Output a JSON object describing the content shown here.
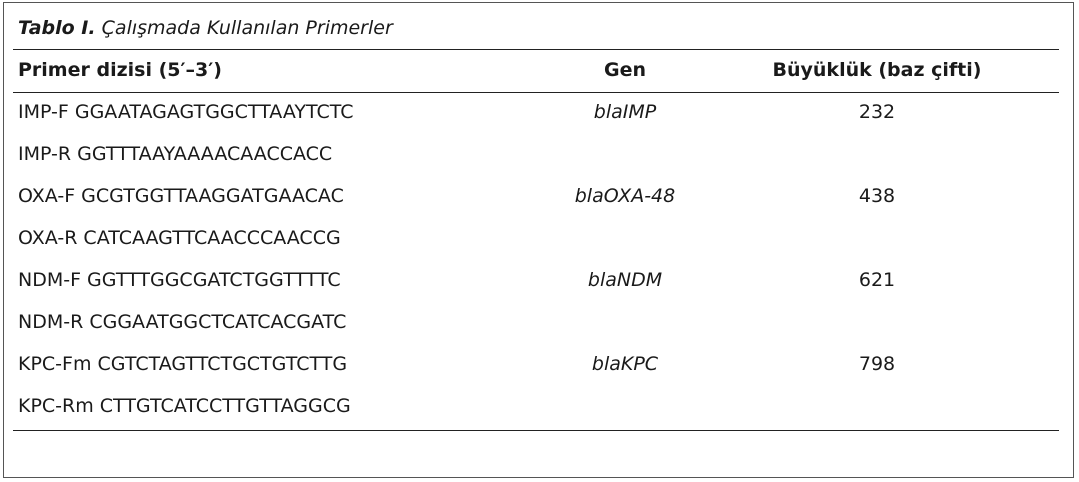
{
  "caption": {
    "label": "Tablo I.",
    "title": "Çalışmada Kullanılan Primerler"
  },
  "table": {
    "headers": [
      "Primer dizisi (5′–3′)",
      "Gen",
      "Büyüklük (baz çifti)"
    ],
    "rows": [
      {
        "primer": "IMP-F GGAATAGAGTGGCTTAAYTCTC",
        "gene": "blaIMP",
        "size": 232
      },
      {
        "primer": "IMP-R GGTTTAAYAAAACAACCACC"
      },
      {
        "primer": "OXA-F GCGTGGTTAAGGATGAACAC",
        "gene": "blaOXA-48",
        "size": 438
      },
      {
        "primer": "OXA-R CATCAAGTTCAACCCAACCG"
      },
      {
        "primer": "NDM-F GGTTTGGCGATCTGGTTTTC",
        "gene": "blaNDM",
        "size": 621
      },
      {
        "primer": "NDM-R CGGAATGGCTCATCACGATC"
      },
      {
        "primer": "KPC-Fm CGTCTAGTTCTGCTGTCTTG",
        "gene": "blaKPC",
        "size": 798
      },
      {
        "primer": "KPC-Rm CTTGTCATCCTTGTTAGGCG"
      }
    ]
  }
}
